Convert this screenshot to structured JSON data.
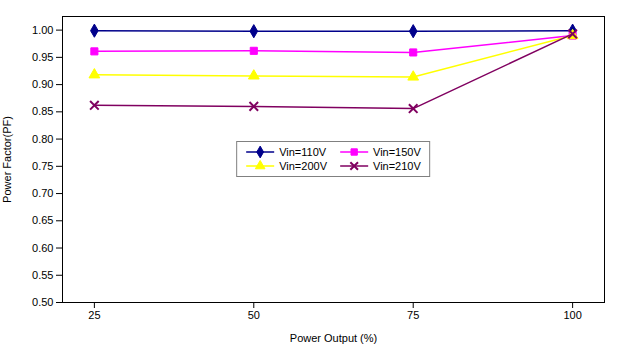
{
  "chart_data": {
    "type": "line",
    "xlabel": "Power Output (%)",
    "ylabel": "Power Factor(PF)",
    "x": [
      25,
      50,
      75,
      100
    ],
    "series": [
      {
        "name": "Vin=110V",
        "color": "#00008B",
        "marker": "diamond",
        "values": [
          0.999,
          0.998,
          0.998,
          0.999
        ]
      },
      {
        "name": "Vin=150V",
        "color": "#FF00FF",
        "marker": "square",
        "values": [
          0.961,
          0.962,
          0.959,
          0.99
        ]
      },
      {
        "name": "Vin=200V",
        "color": "#FFFF00",
        "marker": "triangle",
        "values": [
          0.918,
          0.916,
          0.914,
          0.99
        ]
      },
      {
        "name": "Vin=210V",
        "color": "#800060",
        "marker": "x",
        "values": [
          0.862,
          0.86,
          0.856,
          0.993
        ]
      }
    ],
    "xlim": [
      20,
      105
    ],
    "xticks": [
      25,
      50,
      75,
      100
    ],
    "ylim": [
      0.5,
      1.025
    ],
    "yticks": [
      {
        "value": 0.5,
        "label": "0.50"
      },
      0.55,
      {
        "value": 0.6,
        "label": "0.60"
      },
      0.65,
      {
        "value": 0.7,
        "label": "0.70"
      },
      0.75,
      {
        "value": 0.8,
        "label": "0.80"
      },
      0.85,
      {
        "value": 0.9,
        "label": "0.90"
      },
      0.95,
      {
        "value": 1.0,
        "label": "1.00"
      }
    ],
    "grid": false,
    "legend": "center"
  }
}
